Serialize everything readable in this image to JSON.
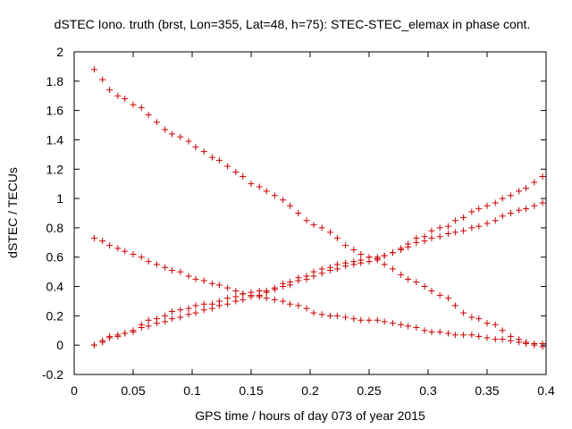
{
  "chart_data": {
    "type": "scatter",
    "title": "dSTEC Iono. truth (brst, Lon=355, Lat=48, h=75): STEC-STEC_elemax in phase cont.",
    "xlabel": "GPS time / hours of day 073 of year 2015",
    "ylabel": "dSTEC  / TECUs",
    "xlim": [
      0,
      0.4
    ],
    "ylim": [
      -0.2,
      2
    ],
    "xticks": [
      "0",
      "0.05",
      "0.1",
      "0.15",
      "0.2",
      "0.25",
      "0.3",
      "0.35",
      "0.4"
    ],
    "yticks": [
      "-0.2",
      "0",
      "0.2",
      "0.4",
      "0.6",
      "0.8",
      "1",
      "1.2",
      "1.4",
      "1.6",
      "1.8",
      "2"
    ],
    "grid": false,
    "marker": "+",
    "marker_color": "#cc0000",
    "series": [
      {
        "x": [
          0.017,
          0.024,
          0.03,
          0.037,
          0.043,
          0.05,
          0.057,
          0.063,
          0.07,
          0.077,
          0.083,
          0.09,
          0.097,
          0.103,
          0.11,
          0.117,
          0.123,
          0.13,
          0.137,
          0.143,
          0.15,
          0.157,
          0.163,
          0.17,
          0.177,
          0.183,
          0.19,
          0.197,
          0.203,
          0.21,
          0.217,
          0.223,
          0.23,
          0.237,
          0.243,
          0.25,
          0.257,
          0.263,
          0.27,
          0.277,
          0.283,
          0.29,
          0.297,
          0.303,
          0.31,
          0.317,
          0.323,
          0.33,
          0.337,
          0.343,
          0.35,
          0.357,
          0.363,
          0.37,
          0.377,
          0.383,
          0.39,
          0.397
        ],
        "values": [
          1.88,
          1.81,
          1.74,
          1.7,
          1.68,
          1.64,
          1.62,
          1.57,
          1.52,
          1.47,
          1.44,
          1.42,
          1.39,
          1.35,
          1.32,
          1.28,
          1.26,
          1.22,
          1.18,
          1.15,
          1.1,
          1.08,
          1.05,
          1.02,
          0.99,
          0.95,
          0.9,
          0.85,
          0.82,
          0.8,
          0.77,
          0.73,
          0.68,
          0.65,
          0.62,
          0.6,
          0.58,
          0.55,
          0.52,
          0.48,
          0.45,
          0.43,
          0.4,
          0.37,
          0.34,
          0.32,
          0.27,
          0.22,
          0.19,
          0.18,
          0.15,
          0.14,
          0.1,
          0.06,
          0.04,
          0.01,
          0.0,
          -0.01
        ]
      },
      {
        "x": [
          0.017,
          0.024,
          0.03,
          0.037,
          0.043,
          0.05,
          0.057,
          0.063,
          0.07,
          0.077,
          0.083,
          0.09,
          0.097,
          0.103,
          0.11,
          0.117,
          0.123,
          0.13,
          0.137,
          0.143,
          0.15,
          0.157,
          0.163,
          0.17,
          0.177,
          0.183,
          0.19,
          0.197,
          0.203,
          0.21,
          0.217,
          0.223,
          0.23,
          0.237,
          0.243,
          0.25,
          0.257,
          0.263,
          0.27,
          0.277,
          0.283,
          0.29,
          0.297,
          0.303,
          0.31,
          0.317,
          0.323,
          0.33,
          0.337,
          0.343,
          0.35,
          0.357,
          0.363,
          0.37,
          0.377,
          0.383,
          0.39,
          0.397
        ],
        "values": [
          0.73,
          0.71,
          0.68,
          0.66,
          0.64,
          0.62,
          0.6,
          0.57,
          0.55,
          0.53,
          0.51,
          0.5,
          0.47,
          0.45,
          0.44,
          0.42,
          0.41,
          0.39,
          0.37,
          0.35,
          0.34,
          0.33,
          0.32,
          0.31,
          0.3,
          0.28,
          0.27,
          0.25,
          0.22,
          0.21,
          0.2,
          0.2,
          0.19,
          0.18,
          0.17,
          0.17,
          0.17,
          0.16,
          0.15,
          0.14,
          0.13,
          0.12,
          0.1,
          0.09,
          0.09,
          0.08,
          0.07,
          0.07,
          0.07,
          0.06,
          0.05,
          0.04,
          0.04,
          0.03,
          0.02,
          0.02,
          0.01,
          0.01
        ]
      },
      {
        "x": [
          0.017,
          0.024,
          0.03,
          0.037,
          0.043,
          0.05,
          0.057,
          0.063,
          0.07,
          0.077,
          0.083,
          0.09,
          0.097,
          0.103,
          0.11,
          0.117,
          0.123,
          0.13,
          0.137,
          0.143,
          0.15,
          0.157,
          0.163,
          0.17,
          0.177,
          0.183,
          0.19,
          0.197,
          0.203,
          0.21,
          0.217,
          0.223,
          0.23,
          0.237,
          0.243,
          0.25,
          0.257,
          0.263,
          0.27,
          0.277,
          0.283,
          0.29,
          0.297,
          0.303,
          0.31,
          0.317,
          0.323,
          0.33,
          0.337,
          0.343,
          0.35,
          0.357,
          0.363,
          0.37,
          0.377,
          0.383,
          0.39,
          0.397
        ],
        "values": [
          0.0,
          0.02,
          0.05,
          0.07,
          0.08,
          0.1,
          0.12,
          0.13,
          0.15,
          0.16,
          0.18,
          0.19,
          0.21,
          0.22,
          0.24,
          0.25,
          0.27,
          0.28,
          0.3,
          0.31,
          0.33,
          0.34,
          0.36,
          0.38,
          0.4,
          0.41,
          0.44,
          0.45,
          0.47,
          0.49,
          0.51,
          0.52,
          0.54,
          0.55,
          0.56,
          0.57,
          0.59,
          0.61,
          0.63,
          0.65,
          0.67,
          0.7,
          0.71,
          0.73,
          0.74,
          0.76,
          0.77,
          0.78,
          0.8,
          0.81,
          0.83,
          0.85,
          0.88,
          0.9,
          0.92,
          0.93,
          0.95,
          0.97
        ]
      },
      {
        "x": [
          0.017,
          0.024,
          0.03,
          0.037,
          0.043,
          0.05,
          0.057,
          0.063,
          0.07,
          0.077,
          0.083,
          0.09,
          0.097,
          0.103,
          0.11,
          0.117,
          0.123,
          0.13,
          0.137,
          0.143,
          0.15,
          0.157,
          0.163,
          0.17,
          0.177,
          0.183,
          0.19,
          0.197,
          0.203,
          0.21,
          0.217,
          0.223,
          0.23,
          0.237,
          0.243,
          0.25,
          0.257,
          0.263,
          0.27,
          0.277,
          0.283,
          0.29,
          0.297,
          0.303,
          0.31,
          0.317,
          0.323,
          0.33,
          0.337,
          0.343,
          0.35,
          0.357,
          0.363,
          0.37,
          0.377,
          0.383,
          0.39,
          0.397
        ],
        "values": [
          0.0,
          0.03,
          0.06,
          0.06,
          0.08,
          0.09,
          0.14,
          0.17,
          0.18,
          0.2,
          0.23,
          0.24,
          0.25,
          0.27,
          0.28,
          0.28,
          0.3,
          0.32,
          0.33,
          0.35,
          0.36,
          0.37,
          0.37,
          0.39,
          0.42,
          0.43,
          0.46,
          0.47,
          0.5,
          0.52,
          0.53,
          0.55,
          0.56,
          0.57,
          0.58,
          0.6,
          0.6,
          0.61,
          0.63,
          0.66,
          0.69,
          0.73,
          0.74,
          0.78,
          0.8,
          0.81,
          0.85,
          0.87,
          0.91,
          0.93,
          0.95,
          0.97,
          1.0,
          1.02,
          1.05,
          1.07,
          1.11,
          1.15
        ]
      }
    ]
  }
}
